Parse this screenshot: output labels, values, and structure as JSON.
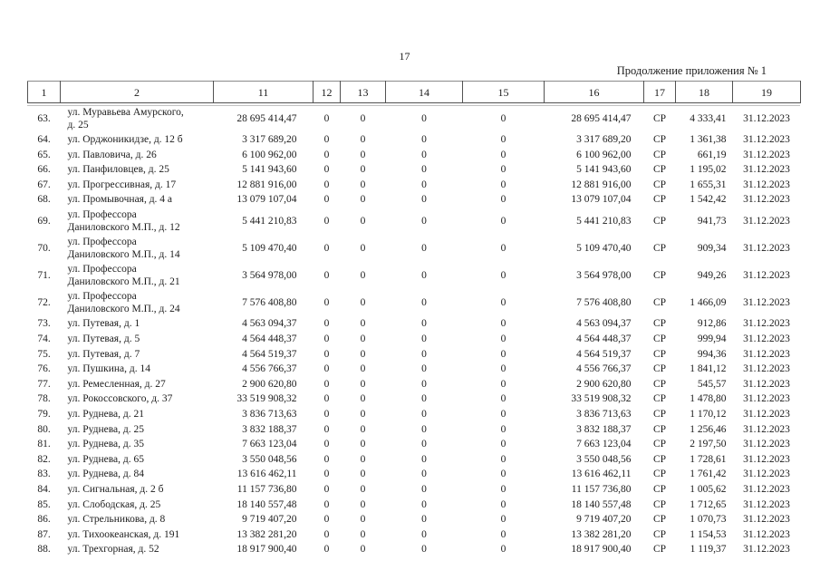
{
  "page": {
    "number": "17",
    "continuation": "Продолжение приложения № 1"
  },
  "table": {
    "columns": [
      "1",
      "2",
      "11",
      "12",
      "13",
      "14",
      "15",
      "16",
      "17",
      "18",
      "19"
    ],
    "rows": [
      {
        "n": "63.",
        "address": "ул. Муравьева Амурского,\nд. 25",
        "c11": "28 695 414,47",
        "c12": "0",
        "c13": "0",
        "c14": "0",
        "c15": "0",
        "c16": "28 695 414,47",
        "c17": "СР",
        "c18": "4 333,41",
        "c19": "31.12.2023"
      },
      {
        "n": "64.",
        "address": "ул. Орджоникидзе, д. 12 б",
        "c11": "3 317 689,20",
        "c12": "0",
        "c13": "0",
        "c14": "0",
        "c15": "0",
        "c16": "3 317 689,20",
        "c17": "СР",
        "c18": "1 361,38",
        "c19": "31.12.2023"
      },
      {
        "n": "65.",
        "address": "ул. Павловича, д. 26",
        "c11": "6 100 962,00",
        "c12": "0",
        "c13": "0",
        "c14": "0",
        "c15": "0",
        "c16": "6 100 962,00",
        "c17": "СР",
        "c18": "661,19",
        "c19": "31.12.2023"
      },
      {
        "n": "66.",
        "address": "ул. Панфиловцев, д. 25",
        "c11": "5 141 943,60",
        "c12": "0",
        "c13": "0",
        "c14": "0",
        "c15": "0",
        "c16": "5 141 943,60",
        "c17": "СР",
        "c18": "1 195,02",
        "c19": "31.12.2023"
      },
      {
        "n": "67.",
        "address": "ул. Прогрессивная, д. 17",
        "c11": "12 881 916,00",
        "c12": "0",
        "c13": "0",
        "c14": "0",
        "c15": "0",
        "c16": "12 881 916,00",
        "c17": "СР",
        "c18": "1 655,31",
        "c19": "31.12.2023"
      },
      {
        "n": "68.",
        "address": "ул. Промывочная, д. 4 а",
        "c11": "13 079 107,04",
        "c12": "0",
        "c13": "0",
        "c14": "0",
        "c15": "0",
        "c16": "13 079 107,04",
        "c17": "СР",
        "c18": "1 542,42",
        "c19": "31.12.2023"
      },
      {
        "n": "69.",
        "address": "ул. Профессора\nДаниловского М.П., д. 12",
        "c11": "5 441 210,83",
        "c12": "0",
        "c13": "0",
        "c14": "0",
        "c15": "0",
        "c16": "5 441 210,83",
        "c17": "СР",
        "c18": "941,73",
        "c19": "31.12.2023"
      },
      {
        "n": "70.",
        "address": "ул. Профессора\nДаниловского М.П., д. 14",
        "c11": "5 109 470,40",
        "c12": "0",
        "c13": "0",
        "c14": "0",
        "c15": "0",
        "c16": "5 109 470,40",
        "c17": "СР",
        "c18": "909,34",
        "c19": "31.12.2023"
      },
      {
        "n": "71.",
        "address": "ул. Профессора\nДаниловского М.П., д. 21",
        "c11": "3 564 978,00",
        "c12": "0",
        "c13": "0",
        "c14": "0",
        "c15": "0",
        "c16": "3 564 978,00",
        "c17": "СР",
        "c18": "949,26",
        "c19": "31.12.2023"
      },
      {
        "n": "72.",
        "address": "ул. Профессора\nДаниловского М.П., д. 24",
        "c11": "7 576 408,80",
        "c12": "0",
        "c13": "0",
        "c14": "0",
        "c15": "0",
        "c16": "7 576 408,80",
        "c17": "СР",
        "c18": "1 466,09",
        "c19": "31.12.2023"
      },
      {
        "n": "73.",
        "address": "ул. Путевая, д. 1",
        "c11": "4 563 094,37",
        "c12": "0",
        "c13": "0",
        "c14": "0",
        "c15": "0",
        "c16": "4 563 094,37",
        "c17": "СР",
        "c18": "912,86",
        "c19": "31.12.2023"
      },
      {
        "n": "74.",
        "address": "ул. Путевая, д. 5",
        "c11": "4 564 448,37",
        "c12": "0",
        "c13": "0",
        "c14": "0",
        "c15": "0",
        "c16": "4 564 448,37",
        "c17": "СР",
        "c18": "999,94",
        "c19": "31.12.2023"
      },
      {
        "n": "75.",
        "address": "ул. Путевая, д. 7",
        "c11": "4 564 519,37",
        "c12": "0",
        "c13": "0",
        "c14": "0",
        "c15": "0",
        "c16": "4 564 519,37",
        "c17": "СР",
        "c18": "994,36",
        "c19": "31.12.2023"
      },
      {
        "n": "76.",
        "address": "ул. Пушкина, д. 14",
        "c11": "4 556 766,37",
        "c12": "0",
        "c13": "0",
        "c14": "0",
        "c15": "0",
        "c16": "4 556 766,37",
        "c17": "СР",
        "c18": "1 841,12",
        "c19": "31.12.2023"
      },
      {
        "n": "77.",
        "address": "ул. Ремесленная, д. 27",
        "c11": "2 900 620,80",
        "c12": "0",
        "c13": "0",
        "c14": "0",
        "c15": "0",
        "c16": "2 900 620,80",
        "c17": "СР",
        "c18": "545,57",
        "c19": "31.12.2023"
      },
      {
        "n": "78.",
        "address": "ул. Рокоссовского, д. 37",
        "c11": "33 519 908,32",
        "c12": "0",
        "c13": "0",
        "c14": "0",
        "c15": "0",
        "c16": "33 519 908,32",
        "c17": "СР",
        "c18": "1 478,80",
        "c19": "31.12.2023"
      },
      {
        "n": "79.",
        "address": "ул. Руднева, д. 21",
        "c11": "3 836 713,63",
        "c12": "0",
        "c13": "0",
        "c14": "0",
        "c15": "0",
        "c16": "3 836 713,63",
        "c17": "СР",
        "c18": "1 170,12",
        "c19": "31.12.2023"
      },
      {
        "n": "80.",
        "address": "ул. Руднева, д. 25",
        "c11": "3 832 188,37",
        "c12": "0",
        "c13": "0",
        "c14": "0",
        "c15": "0",
        "c16": "3 832 188,37",
        "c17": "СР",
        "c18": "1 256,46",
        "c19": "31.12.2023"
      },
      {
        "n": "81.",
        "address": "ул. Руднева, д. 35",
        "c11": "7 663 123,04",
        "c12": "0",
        "c13": "0",
        "c14": "0",
        "c15": "0",
        "c16": "7 663 123,04",
        "c17": "СР",
        "c18": "2 197,50",
        "c19": "31.12.2023"
      },
      {
        "n": "82.",
        "address": "ул. Руднева, д. 65",
        "c11": "3 550 048,56",
        "c12": "0",
        "c13": "0",
        "c14": "0",
        "c15": "0",
        "c16": "3 550 048,56",
        "c17": "СР",
        "c18": "1 728,61",
        "c19": "31.12.2023"
      },
      {
        "n": "83.",
        "address": "ул. Руднева, д. 84",
        "c11": "13 616 462,11",
        "c12": "0",
        "c13": "0",
        "c14": "0",
        "c15": "0",
        "c16": "13 616 462,11",
        "c17": "СР",
        "c18": "1 761,42",
        "c19": "31.12.2023"
      },
      {
        "n": "84.",
        "address": "ул. Сигнальная, д. 2 б",
        "c11": "11 157 736,80",
        "c12": "0",
        "c13": "0",
        "c14": "0",
        "c15": "0",
        "c16": "11 157 736,80",
        "c17": "СР",
        "c18": "1 005,62",
        "c19": "31.12.2023"
      },
      {
        "n": "85.",
        "address": "ул. Слободская, д. 25",
        "c11": "18 140 557,48",
        "c12": "0",
        "c13": "0",
        "c14": "0",
        "c15": "0",
        "c16": "18 140 557,48",
        "c17": "СР",
        "c18": "1 712,65",
        "c19": "31.12.2023"
      },
      {
        "n": "86.",
        "address": "ул. Стрельникова, д. 8",
        "c11": "9 719 407,20",
        "c12": "0",
        "c13": "0",
        "c14": "0",
        "c15": "0",
        "c16": "9 719 407,20",
        "c17": "СР",
        "c18": "1 070,73",
        "c19": "31.12.2023"
      },
      {
        "n": "87.",
        "address": "ул. Тихоокеанская, д. 191",
        "c11": "13 382 281,20",
        "c12": "0",
        "c13": "0",
        "c14": "0",
        "c15": "0",
        "c16": "13 382 281,20",
        "c17": "СР",
        "c18": "1 154,53",
        "c19": "31.12.2023"
      },
      {
        "n": "88.",
        "address": "ул. Трехгорная, д. 52",
        "c11": "18 917 900,40",
        "c12": "0",
        "c13": "0",
        "c14": "0",
        "c15": "0",
        "c16": "18 917 900,40",
        "c17": "СР",
        "c18": "1 119,37",
        "c19": "31.12.2023"
      }
    ]
  }
}
